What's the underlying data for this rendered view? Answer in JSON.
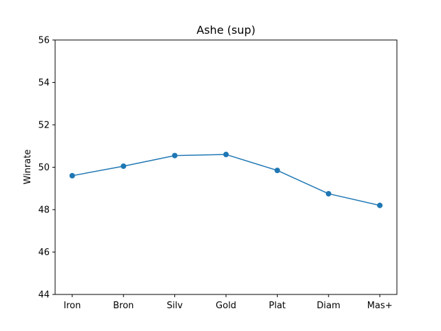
{
  "chart_data": {
    "type": "line",
    "title": "Ashe (sup)",
    "xlabel": "",
    "ylabel": "Winrate",
    "categories": [
      "Iron",
      "Bron",
      "Silv",
      "Gold",
      "Plat",
      "Diam",
      "Mas+"
    ],
    "series": [
      {
        "name": "Winrate",
        "values": [
          49.6,
          50.05,
          50.55,
          50.6,
          49.85,
          48.75,
          48.2
        ],
        "color": "#1f77b4"
      }
    ],
    "ylim": [
      44,
      56
    ],
    "yticks": [
      44,
      46,
      48,
      50,
      52,
      54,
      56
    ],
    "grid": false,
    "legend": "none"
  }
}
